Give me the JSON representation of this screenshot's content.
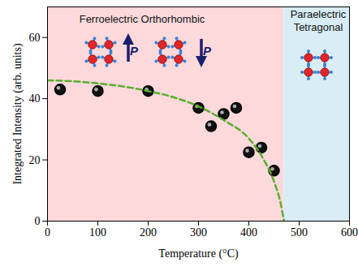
{
  "chart_data": {
    "type": "scatter",
    "xlabel": "Temperature (°C)",
    "ylabel": "Integrated Intensity (arb. units)",
    "xlim": [
      0,
      600
    ],
    "xticks": [
      0,
      100,
      200,
      300,
      400,
      500,
      600
    ],
    "ylim": [
      0,
      70
    ],
    "yticks": [
      0,
      20,
      40,
      60
    ],
    "series": [
      {
        "type": "scatter",
        "color": "#111111",
        "marker": "circle",
        "x": [
          25,
          100,
          200,
          300,
          325,
          350,
          375,
          400,
          425,
          450
        ],
        "values": [
          43,
          42.5,
          42.5,
          37,
          31,
          35,
          37,
          22.5,
          24,
          16.5
        ]
      },
      {
        "type": "line",
        "color": "#5aad2f",
        "line_style": "dashed",
        "x": [
          0,
          50,
          100,
          150,
          200,
          250,
          300,
          350,
          400,
          430,
          450,
          463,
          470
        ],
        "values": [
          46,
          45.7,
          45,
          44,
          42.5,
          40.5,
          37.5,
          33,
          27,
          20,
          13,
          6,
          0
        ]
      }
    ],
    "regions": [
      {
        "label": [
          "Ferroelectric Orthorhombic"
        ],
        "x0": 0,
        "x1": 470,
        "color": "#fdd9dc"
      },
      {
        "label": [
          "Paraelectric",
          "Tetragonal"
        ],
        "x0": 470,
        "x1": 600,
        "color": "#d9edf7"
      }
    ],
    "annotations": [
      {
        "label": "P",
        "direction": "up"
      },
      {
        "label": "P",
        "direction": "down"
      }
    ]
  }
}
